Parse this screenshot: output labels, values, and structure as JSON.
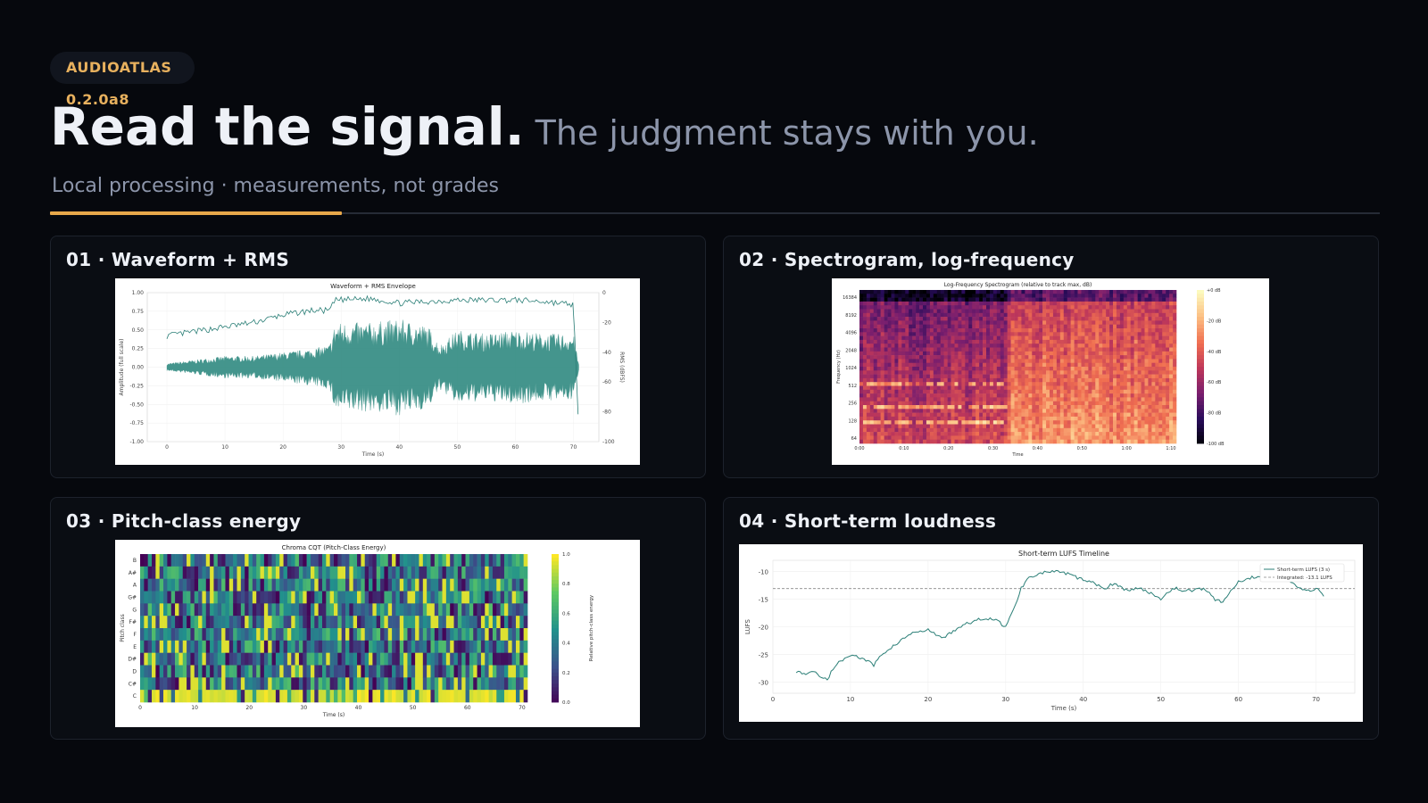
{
  "badge": "AUDIOATLAS 0.2.0a8",
  "headline": {
    "main": "Read the signal.",
    "sub": "The judgment stays with you."
  },
  "tagline": "Local processing · measurements, not grades",
  "colors": {
    "accent": "#e8a84a",
    "badge_text": "#e8b15e",
    "background": "#06080d",
    "teal": "#3a9087"
  },
  "panels": [
    {
      "title": "01 · Waveform + RMS",
      "chart_data": {
        "type": "area",
        "title": "Waveform + RMS Envelope",
        "xlabel": "Time (s)",
        "ylabel": "Amplitude (full scale)",
        "ylabel_right": "RMS (dBFS)",
        "xlim": [
          0,
          71
        ],
        "ylim": [
          -1.0,
          1.0
        ],
        "ylim_right": [
          -100,
          0
        ],
        "x_ticks": [
          "0",
          "10",
          "20",
          "30",
          "40",
          "50",
          "60",
          "70"
        ],
        "y_ticks": [
          "1.00",
          "0.75",
          "0.50",
          "0.25",
          "0.00",
          "-0.25",
          "-0.50",
          "-0.75",
          "-1.00"
        ],
        "y_ticks_right": [
          "0",
          "-20",
          "-40",
          "-60",
          "-80",
          "-100"
        ],
        "series": [
          {
            "values_x": [
              0,
              5,
              10,
              15,
              20,
              25,
              28,
              29,
              35,
              40,
              45,
              47,
              50,
              55,
              60,
              65,
              70,
              71
            ],
            "values_y": [
              0.05,
              0.1,
              0.15,
              0.15,
              0.2,
              0.25,
              0.3,
              0.6,
              0.6,
              0.65,
              0.55,
              0.3,
              0.5,
              0.45,
              0.5,
              0.45,
              0.45,
              0.0
            ]
          },
          {
            "values_x": [
              0,
              5,
              10,
              15,
              20,
              25,
              28,
              29,
              35,
              40,
              45,
              50,
              55,
              60,
              65,
              70,
              71
            ],
            "values_y": [
              -29,
              -26,
              -23,
              -20,
              -15,
              -12,
              -12,
              -5,
              -4,
              -7,
              -6,
              -5,
              -5,
              -5,
              -6,
              -8,
              -100
            ]
          }
        ]
      }
    },
    {
      "title": "02 · Spectrogram, log-frequency",
      "chart_data": {
        "type": "heatmap",
        "title": "Log-Frequency Spectrogram (relative to track max, dB)",
        "xlabel": "Time",
        "ylabel": "Frequency (Hz)",
        "x_ticks": [
          "0:00",
          "0:10",
          "0:20",
          "0:30",
          "0:40",
          "0:50",
          "1:00",
          "1:10"
        ],
        "y_ticks": [
          "16384",
          "8192",
          "4096",
          "2048",
          "1024",
          "512",
          "256",
          "128",
          "64"
        ],
        "colorbar_ticks": [
          "+0 dB",
          "-20 dB",
          "-40 dB",
          "-60 dB",
          "-80 dB",
          "-100 dB"
        ],
        "colormap": "magma"
      }
    },
    {
      "title": "03 · Pitch-class energy",
      "chart_data": {
        "type": "heatmap",
        "title": "Chroma CQT (Pitch-Class Energy)",
        "xlabel": "Time (s)",
        "ylabel": "Pitch class",
        "colorbar_label": "Relative pitch-class energy",
        "categories": [
          "B",
          "A#",
          "A",
          "G#",
          "G",
          "F#",
          "F",
          "E",
          "D#",
          "D",
          "C#",
          "C"
        ],
        "x_ticks": [
          "0",
          "10",
          "20",
          "30",
          "40",
          "50",
          "60",
          "70"
        ],
        "colorbar_ticks": [
          "1.0",
          "0.8",
          "0.6",
          "0.4",
          "0.2",
          "0.0"
        ],
        "colormap": "viridis"
      }
    },
    {
      "title": "04 · Short-term loudness",
      "chart_data": {
        "type": "line",
        "title": "Short-term LUFS Timeline",
        "xlabel": "Time (s)",
        "ylabel": "LUFS",
        "xlim": [
          0,
          75
        ],
        "ylim": [
          -32,
          -8
        ],
        "x_ticks": [
          "0",
          "10",
          "20",
          "30",
          "40",
          "50",
          "60",
          "70"
        ],
        "y_ticks": [
          "-10",
          "-15",
          "-20",
          "-25",
          "-30"
        ],
        "legend": [
          "Short-term LUFS (3 s)",
          "Integrated: -13.1 LUFS"
        ],
        "legend_position": "top-right",
        "integrated": -13.1,
        "x": [
          3,
          4,
          5,
          6,
          7,
          8,
          9,
          10,
          11,
          12,
          13,
          14,
          15,
          16,
          17,
          18,
          19,
          20,
          21,
          22,
          23,
          24,
          25,
          26,
          27,
          28,
          29,
          30,
          31,
          32,
          33,
          34,
          35,
          36,
          37,
          38,
          39,
          40,
          41,
          42,
          43,
          44,
          45,
          46,
          47,
          48,
          49,
          50,
          51,
          52,
          53,
          54,
          55,
          56,
          57,
          58,
          59,
          60,
          61,
          62,
          63,
          64,
          65,
          66,
          67,
          68,
          69,
          70,
          71
        ],
        "y": [
          -28,
          -28.5,
          -28,
          -28.8,
          -29.5,
          -27,
          -26,
          -25,
          -25.5,
          -26,
          -27,
          -25,
          -24,
          -23,
          -22,
          -21,
          -21,
          -20.5,
          -21.5,
          -22,
          -21,
          -20,
          -19.5,
          -19,
          -18.5,
          -18.5,
          -19,
          -20,
          -17,
          -13,
          -11,
          -10.5,
          -10.2,
          -10,
          -10.2,
          -10.5,
          -11,
          -11.5,
          -12,
          -12.5,
          -13,
          -12,
          -13,
          -13.5,
          -13,
          -13.5,
          -14,
          -15,
          -13.5,
          -13,
          -13.5,
          -13.5,
          -13,
          -13.5,
          -15,
          -15.5,
          -13.5,
          -12,
          -11.5,
          -11,
          -11,
          -11.5,
          -10.5,
          -11,
          -12,
          -13,
          -13.5,
          -13,
          -14.5
        ]
      }
    }
  ]
}
